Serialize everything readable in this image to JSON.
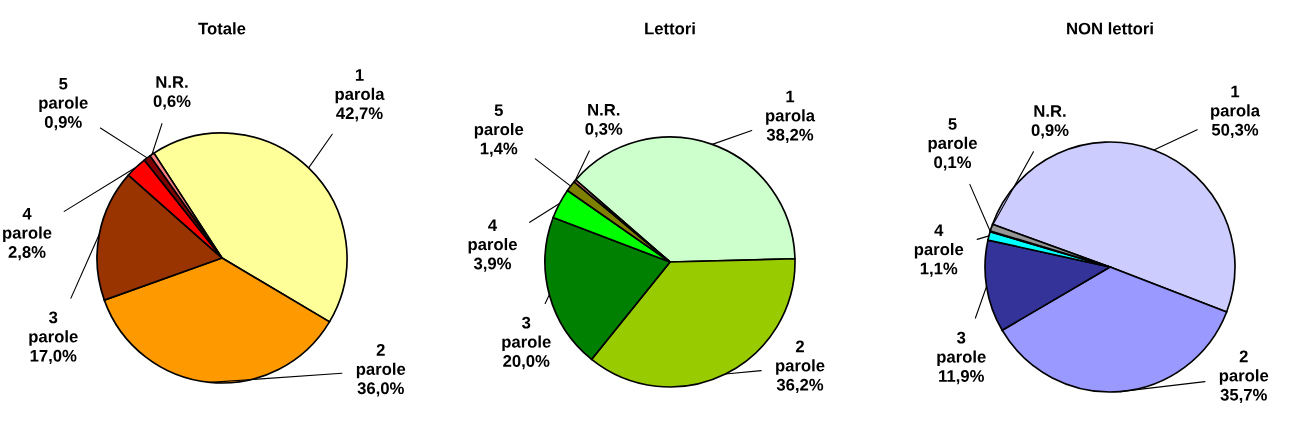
{
  "chart_data": [
    {
      "type": "pie",
      "title": "Totale",
      "categories": [
        "1 parola",
        "2 parole",
        "3 parole",
        "4 parole",
        "5 parole",
        "N.R."
      ],
      "values": [
        42.7,
        36.0,
        17.0,
        2.8,
        0.9,
        0.6
      ],
      "value_labels": [
        "42,7%",
        "36,0%",
        "17,0%",
        "2,8%",
        "0,9%",
        "0,6%"
      ],
      "colors": [
        "#ffff99",
        "#ff9900",
        "#993300",
        "#ff0000",
        "#800000",
        "#ff8080"
      ]
    },
    {
      "type": "pie",
      "title": "Lettori",
      "categories": [
        "1 parola",
        "2 parole",
        "3 parole",
        "4 parole",
        "5 parole",
        "N.R."
      ],
      "values": [
        38.2,
        36.2,
        20.0,
        3.9,
        1.4,
        0.3
      ],
      "value_labels": [
        "38,2%",
        "36,2%",
        "20,0%",
        "3,9%",
        "1,4%",
        "0,3%"
      ],
      "colors": [
        "#ccffcc",
        "#99cc00",
        "#008000",
        "#00ff00",
        "#808000",
        "#ff8080"
      ]
    },
    {
      "type": "pie",
      "title": "NON lettori",
      "categories": [
        "1 parola",
        "2 parole",
        "3 parole",
        "4 parole",
        "5 parole",
        "N.R."
      ],
      "values": [
        50.3,
        35.7,
        11.9,
        1.1,
        0.1,
        0.9
      ],
      "value_labels": [
        "50,3%",
        "35,7%",
        "11,9%",
        "1,1%",
        "0,1%",
        "0,9%"
      ],
      "colors": [
        "#ccccff",
        "#9999ff",
        "#333399",
        "#00ffff",
        "#000080",
        "#969696"
      ]
    }
  ]
}
